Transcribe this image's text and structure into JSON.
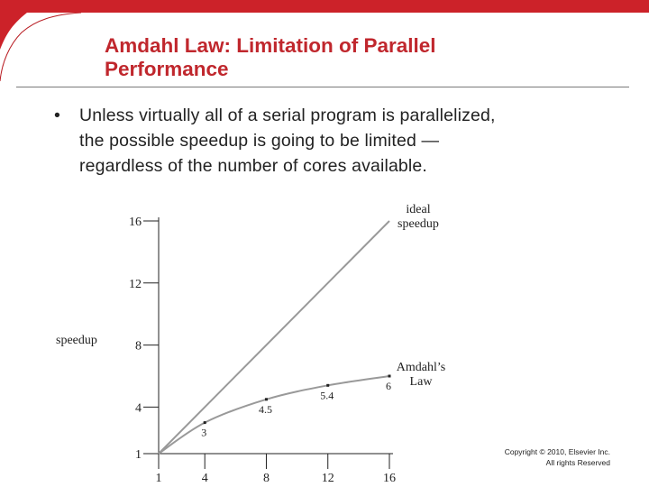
{
  "slide": {
    "title_lines": [
      "Amdahl Law: Limitation of Parallel",
      "Performance"
    ],
    "bullet_marker": "•",
    "bullet_lines": [
      "Unless virtually all of a serial program is parallelized,",
      "the possible speedup is going to be  limited —",
      "regardless of the number of cores available."
    ],
    "copyright_lines": [
      "Copyright © 2010, Elsevier Inc.",
      "All rights Reserved"
    ],
    "colors": {
      "title": "#c0272d",
      "accent_red": "#cc2229",
      "line": "#999999",
      "text": "#222222"
    }
  },
  "chart_data": {
    "type": "line",
    "ylabel": "speedup",
    "xlabel": "",
    "x_ticks": [
      1,
      4,
      8,
      12,
      16
    ],
    "y_ticks": [
      1,
      4,
      8,
      12,
      16
    ],
    "xlim": [
      1,
      16
    ],
    "ylim": [
      1,
      16
    ],
    "grid": false,
    "series": [
      {
        "name": "ideal speedup",
        "label_lines": [
          "ideal",
          "speedup"
        ],
        "x": [
          1,
          16
        ],
        "y": [
          1,
          16
        ],
        "point_labels": []
      },
      {
        "name": "Amdahl's Law",
        "label_lines": [
          "Amdahl’s",
          "Law"
        ],
        "x": [
          1,
          4,
          8,
          12,
          16
        ],
        "y": [
          1,
          3,
          4.5,
          5.4,
          6
        ],
        "point_labels": [
          "",
          "3",
          "4.5",
          "5.4",
          "6"
        ]
      }
    ]
  }
}
